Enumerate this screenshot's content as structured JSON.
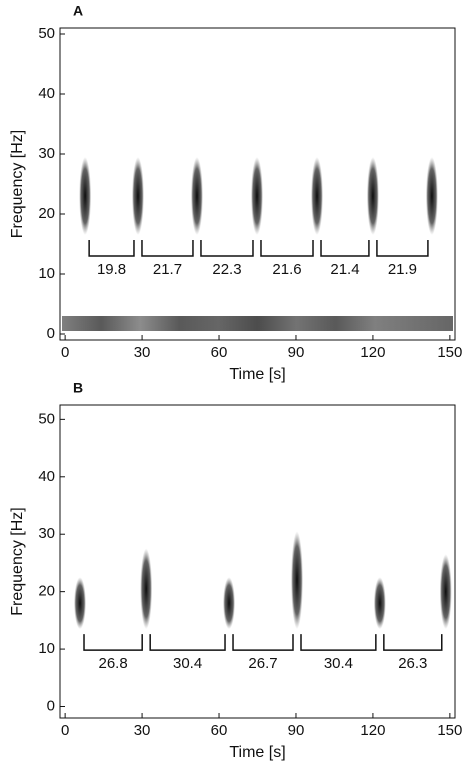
{
  "chart_data": [
    {
      "type": "spectrogram",
      "title": "A",
      "xlabel": "Time [s]",
      "ylabel": "Frequency [Hz]",
      "xlim": [
        -2,
        152
      ],
      "xticks": [
        0,
        30,
        60,
        90,
        120,
        150
      ],
      "ylim": [
        -1,
        51
      ],
      "yticks": [
        0,
        10,
        20,
        30,
        40,
        50
      ],
      "x": [
        7.8,
        28.4,
        51.4,
        74.8,
        98.2,
        120,
        143
      ],
      "fmin": [
        17,
        17,
        17,
        17,
        17,
        17,
        17
      ],
      "fmax": [
        29,
        29,
        29,
        29,
        29,
        29,
        29
      ],
      "intervals": [
        19.8,
        21.7,
        22.3,
        21.6,
        21.4,
        21.9
      ],
      "color": "#111111"
    },
    {
      "type": "spectrogram",
      "title": "B",
      "xlabel": "Time [s]",
      "ylabel": "Frequency [Hz]",
      "xlim": [
        -2,
        152
      ],
      "xticks": [
        0,
        30,
        60,
        90,
        120,
        150
      ],
      "ylim": [
        -2,
        52.5
      ],
      "yticks": [
        0,
        10,
        20,
        30,
        40,
        50
      ],
      "x": [
        5.8,
        31.6,
        63.9,
        90.4,
        122.7,
        148.4
      ],
      "fmin": [
        14,
        14,
        14,
        14,
        14,
        14
      ],
      "fmax": [
        22,
        27,
        22,
        30,
        22,
        26
      ],
      "intervals": [
        26.8,
        30.4,
        26.7,
        30.4,
        26.3
      ],
      "color": "#111111"
    }
  ]
}
